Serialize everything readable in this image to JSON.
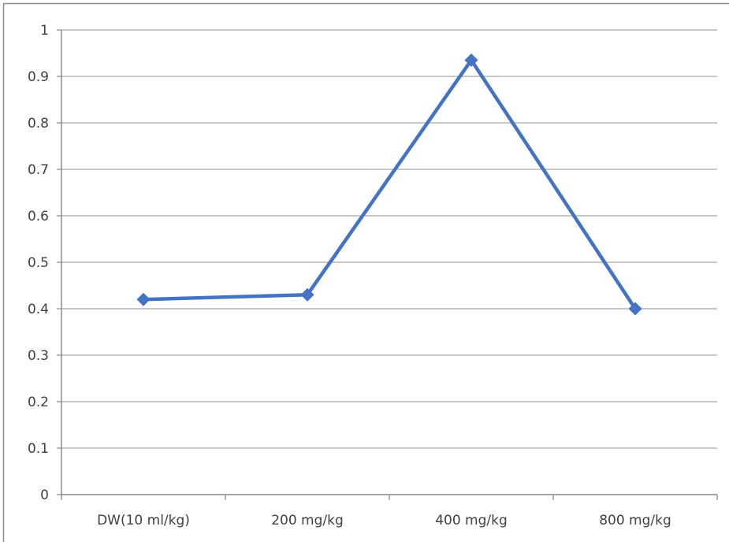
{
  "chart_data": {
    "type": "line",
    "title": "",
    "xlabel": "",
    "ylabel": "",
    "categories": [
      "DW(10 ml/kg)",
      "200 mg/kg",
      "400 mg/kg",
      "800 mg/kg"
    ],
    "series": [
      {
        "values": [
          0.42,
          0.43,
          0.935,
          0.4
        ]
      }
    ],
    "ylim": [
      0,
      1
    ],
    "yticks": [
      "0",
      "0.1",
      "0.2",
      "0.3",
      "0.4",
      "0.5",
      "0.6",
      "0.7",
      "0.8",
      "0.9",
      "1"
    ],
    "grid": true,
    "legend": "none",
    "marker": "diamond",
    "colors": {
      "series": "#4472C4",
      "grid": "#a6a6a6",
      "axis": "#868686",
      "text": "#404040",
      "border": "#8c8c8c"
    }
  }
}
